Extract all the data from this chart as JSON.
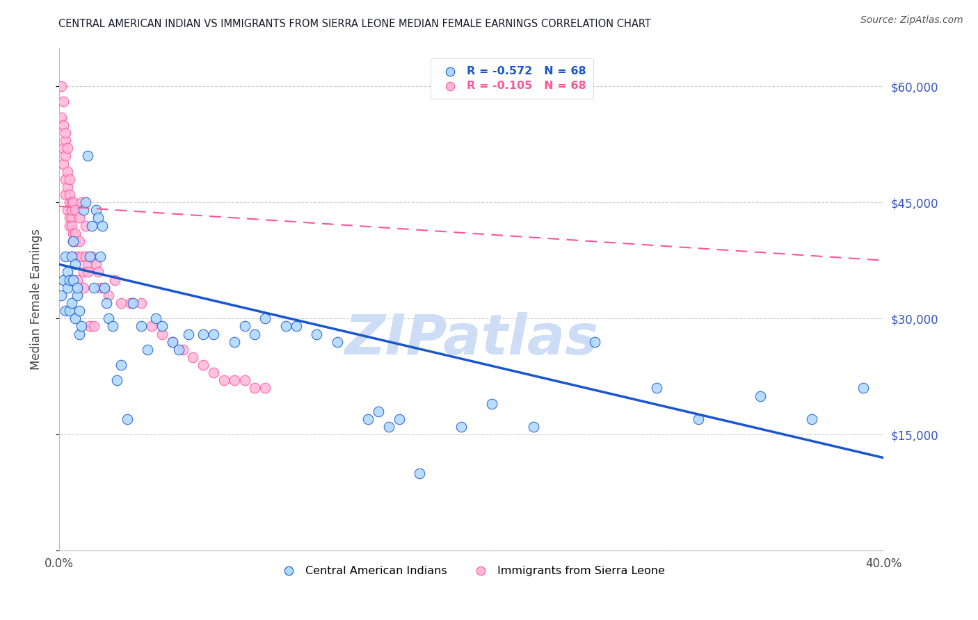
{
  "title": "CENTRAL AMERICAN INDIAN VS IMMIGRANTS FROM SIERRA LEONE MEDIAN FEMALE EARNINGS CORRELATION CHART",
  "source": "Source: ZipAtlas.com",
  "ylabel": "Median Female Earnings",
  "right_ytick_labels": [
    "",
    "$15,000",
    "$30,000",
    "$45,000",
    "$60,000"
  ],
  "right_yticks": [
    0,
    15000,
    30000,
    45000,
    60000
  ],
  "xlim": [
    0.0,
    0.4
  ],
  "ylim": [
    0,
    65000
  ],
  "watermark": "ZIPatlas",
  "legend_label1": "Central American Indians",
  "legend_label2": "Immigrants from Sierra Leone",
  "blue_scatter": [
    [
      0.001,
      33000
    ],
    [
      0.002,
      35000
    ],
    [
      0.003,
      31000
    ],
    [
      0.003,
      38000
    ],
    [
      0.004,
      36000
    ],
    [
      0.004,
      34000
    ],
    [
      0.005,
      31000
    ],
    [
      0.005,
      35000
    ],
    [
      0.006,
      32000
    ],
    [
      0.006,
      38000
    ],
    [
      0.007,
      40000
    ],
    [
      0.007,
      35000
    ],
    [
      0.008,
      30000
    ],
    [
      0.008,
      37000
    ],
    [
      0.009,
      33000
    ],
    [
      0.009,
      34000
    ],
    [
      0.01,
      31000
    ],
    [
      0.01,
      28000
    ],
    [
      0.011,
      29000
    ],
    [
      0.012,
      44000
    ],
    [
      0.013,
      45000
    ],
    [
      0.014,
      51000
    ],
    [
      0.015,
      38000
    ],
    [
      0.016,
      42000
    ],
    [
      0.017,
      34000
    ],
    [
      0.018,
      44000
    ],
    [
      0.019,
      43000
    ],
    [
      0.02,
      38000
    ],
    [
      0.021,
      42000
    ],
    [
      0.022,
      34000
    ],
    [
      0.023,
      32000
    ],
    [
      0.024,
      30000
    ],
    [
      0.026,
      29000
    ],
    [
      0.028,
      22000
    ],
    [
      0.03,
      24000
    ],
    [
      0.033,
      17000
    ],
    [
      0.036,
      32000
    ],
    [
      0.04,
      29000
    ],
    [
      0.043,
      26000
    ],
    [
      0.047,
      30000
    ],
    [
      0.05,
      29000
    ],
    [
      0.055,
      27000
    ],
    [
      0.058,
      26000
    ],
    [
      0.063,
      28000
    ],
    [
      0.07,
      28000
    ],
    [
      0.075,
      28000
    ],
    [
      0.085,
      27000
    ],
    [
      0.09,
      29000
    ],
    [
      0.095,
      28000
    ],
    [
      0.1,
      30000
    ],
    [
      0.11,
      29000
    ],
    [
      0.115,
      29000
    ],
    [
      0.125,
      28000
    ],
    [
      0.135,
      27000
    ],
    [
      0.15,
      17000
    ],
    [
      0.155,
      18000
    ],
    [
      0.16,
      16000
    ],
    [
      0.165,
      17000
    ],
    [
      0.175,
      10000
    ],
    [
      0.195,
      16000
    ],
    [
      0.21,
      19000
    ],
    [
      0.23,
      16000
    ],
    [
      0.26,
      27000
    ],
    [
      0.29,
      21000
    ],
    [
      0.31,
      17000
    ],
    [
      0.34,
      20000
    ],
    [
      0.365,
      17000
    ],
    [
      0.39,
      21000
    ]
  ],
  "pink_scatter": [
    [
      0.001,
      60000
    ],
    [
      0.001,
      56000
    ],
    [
      0.002,
      55000
    ],
    [
      0.002,
      58000
    ],
    [
      0.002,
      52000
    ],
    [
      0.002,
      50000
    ],
    [
      0.003,
      48000
    ],
    [
      0.003,
      53000
    ],
    [
      0.003,
      46000
    ],
    [
      0.003,
      54000
    ],
    [
      0.003,
      51000
    ],
    [
      0.004,
      47000
    ],
    [
      0.004,
      49000
    ],
    [
      0.004,
      44000
    ],
    [
      0.004,
      52000
    ],
    [
      0.005,
      45000
    ],
    [
      0.005,
      46000
    ],
    [
      0.005,
      43000
    ],
    [
      0.005,
      42000
    ],
    [
      0.005,
      48000
    ],
    [
      0.006,
      45000
    ],
    [
      0.006,
      44000
    ],
    [
      0.006,
      43000
    ],
    [
      0.006,
      44000
    ],
    [
      0.006,
      42000
    ],
    [
      0.007,
      40000
    ],
    [
      0.007,
      41000
    ],
    [
      0.007,
      45000
    ],
    [
      0.007,
      38000
    ],
    [
      0.008,
      44000
    ],
    [
      0.008,
      40000
    ],
    [
      0.008,
      41000
    ],
    [
      0.009,
      38000
    ],
    [
      0.009,
      35000
    ],
    [
      0.01,
      43000
    ],
    [
      0.01,
      40000
    ],
    [
      0.011,
      45000
    ],
    [
      0.011,
      38000
    ],
    [
      0.012,
      36000
    ],
    [
      0.012,
      34000
    ],
    [
      0.013,
      42000
    ],
    [
      0.013,
      38000
    ],
    [
      0.014,
      37000
    ],
    [
      0.014,
      36000
    ],
    [
      0.015,
      29000
    ],
    [
      0.016,
      38000
    ],
    [
      0.017,
      29000
    ],
    [
      0.018,
      37000
    ],
    [
      0.019,
      36000
    ],
    [
      0.02,
      34000
    ],
    [
      0.022,
      34000
    ],
    [
      0.024,
      33000
    ],
    [
      0.027,
      35000
    ],
    [
      0.03,
      32000
    ],
    [
      0.035,
      32000
    ],
    [
      0.04,
      32000
    ],
    [
      0.045,
      29000
    ],
    [
      0.05,
      28000
    ],
    [
      0.055,
      27000
    ],
    [
      0.06,
      26000
    ],
    [
      0.065,
      25000
    ],
    [
      0.07,
      24000
    ],
    [
      0.075,
      23000
    ],
    [
      0.08,
      22000
    ],
    [
      0.085,
      22000
    ],
    [
      0.09,
      22000
    ],
    [
      0.095,
      21000
    ],
    [
      0.1,
      21000
    ]
  ],
  "blue_line_x": [
    0.0,
    0.4
  ],
  "blue_line_y": [
    37000,
    12000
  ],
  "pink_line_x": [
    0.0,
    0.4
  ],
  "pink_line_y": [
    44500,
    37500
  ],
  "scatter_color_blue": "#add8ff",
  "scatter_color_pink": "#ffb6d9",
  "line_color_blue": "#1a56cc",
  "line_color_pink": "#ff5599",
  "grid_color": "#cccccc",
  "title_color": "#1a1a2e",
  "right_axis_color": "#3355bb",
  "watermark_color": "#ccddf5",
  "background_color": "#ffffff"
}
